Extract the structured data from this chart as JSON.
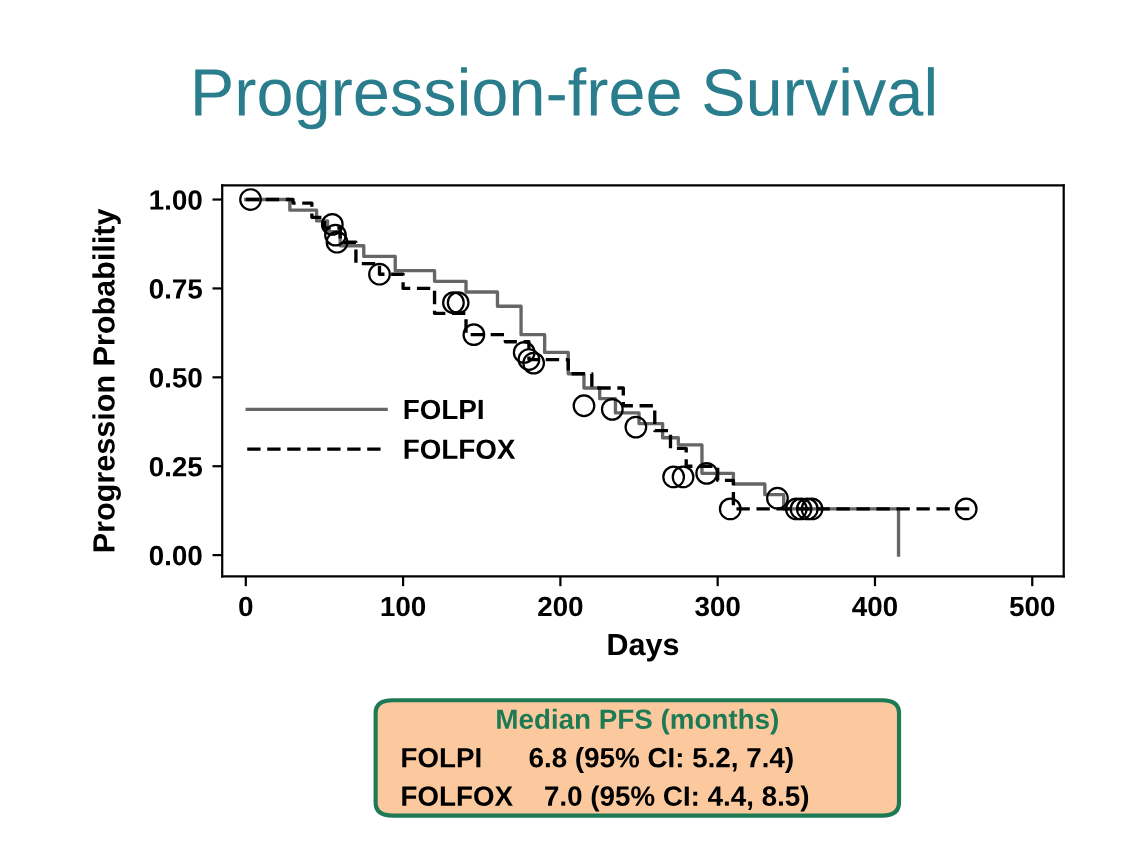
{
  "chart_data": {
    "type": "step",
    "title": "Progression-free Survival",
    "xlabel": "Days",
    "ylabel": "Progression Probability",
    "series": [
      {
        "name": "FOLPI",
        "color": "#666666",
        "line_style": "solid",
        "x": [
          0,
          28,
          45,
          52,
          60,
          75,
          95,
          120,
          140,
          160,
          175,
          190,
          205,
          215,
          225,
          235,
          250,
          265,
          275,
          290,
          310,
          330,
          342,
          415
        ],
        "values": [
          1.0,
          0.97,
          0.94,
          0.91,
          0.87,
          0.84,
          0.8,
          0.77,
          0.74,
          0.7,
          0.62,
          0.57,
          0.51,
          0.47,
          0.44,
          0.4,
          0.37,
          0.33,
          0.31,
          0.23,
          0.2,
          0.17,
          0.13,
          0.0
        ]
      },
      {
        "name": "FOLFOX",
        "color": "#000000",
        "line_style": "dashed",
        "x": [
          0,
          30,
          42,
          50,
          60,
          70,
          85,
          100,
          120,
          140,
          165,
          180,
          205,
          220,
          240,
          260,
          270,
          280,
          300,
          310,
          460
        ],
        "values": [
          1.0,
          0.99,
          0.95,
          0.92,
          0.88,
          0.82,
          0.79,
          0.75,
          0.68,
          0.62,
          0.6,
          0.55,
          0.51,
          0.47,
          0.42,
          0.35,
          0.3,
          0.25,
          0.21,
          0.13,
          0.13
        ]
      },
      {
        "type": "scatter",
        "color": "#000000",
        "marker": "circle",
        "x": [
          3,
          55,
          57,
          58,
          85,
          132,
          135,
          145,
          177,
          180,
          183,
          215,
          233,
          248,
          272,
          278,
          293,
          308,
          338,
          350,
          353,
          357,
          360,
          458
        ],
        "values": [
          1.0,
          0.93,
          0.9,
          0.88,
          0.79,
          0.71,
          0.71,
          0.62,
          0.57,
          0.55,
          0.54,
          0.42,
          0.41,
          0.36,
          0.22,
          0.22,
          0.23,
          0.13,
          0.16,
          0.13,
          0.13,
          0.13,
          0.13,
          0.13
        ]
      }
    ],
    "xlim": [
      -15,
      520
    ],
    "xticks": [
      0,
      100,
      200,
      300,
      400,
      500
    ],
    "ylim": [
      -0.06,
      1.04
    ],
    "yticks": [
      {
        "value": 0,
        "label": "0.00"
      },
      {
        "value": 0.25,
        "label": "0.25"
      },
      {
        "value": 0.5,
        "label": "0.50"
      },
      {
        "value": 0.75,
        "label": "0.75"
      },
      {
        "value": 1,
        "label": "1.00"
      }
    ],
    "legend": "left",
    "grid": false,
    "annotations": [
      "Median PFS (months)",
      "FOLPI      6.8 (95% CI: 5.2, 7.4)",
      "FOLFOX    7.0 (95% CI: 4.4, 8.5)"
    ]
  }
}
